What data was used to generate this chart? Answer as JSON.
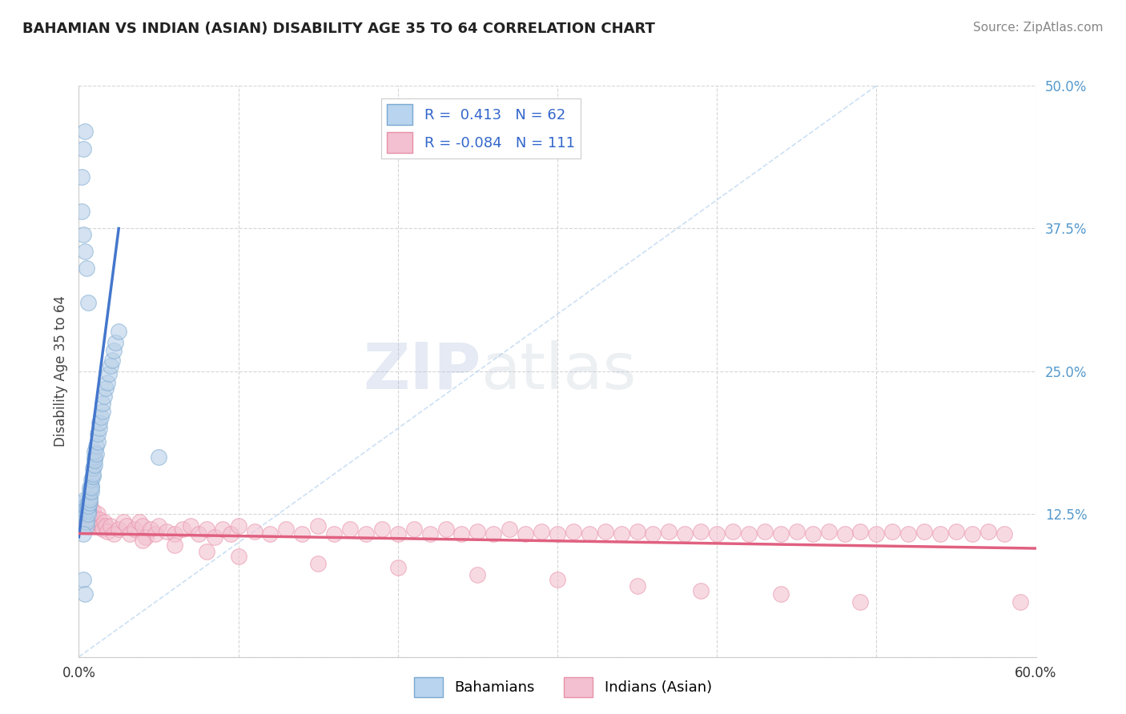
{
  "title": "BAHAMIAN VS INDIAN (ASIAN) DISABILITY AGE 35 TO 64 CORRELATION CHART",
  "source": "Source: ZipAtlas.com",
  "ylabel": "Disability Age 35 to 64",
  "xlim": [
    0.0,
    0.6
  ],
  "ylim": [
    0.0,
    0.5
  ],
  "xticks": [
    0.0,
    0.1,
    0.2,
    0.3,
    0.4,
    0.5,
    0.6
  ],
  "xticklabels": [
    "0.0%",
    "",
    "",
    "",
    "",
    "",
    "60.0%"
  ],
  "yticks": [
    0.0,
    0.125,
    0.25,
    0.375,
    0.5
  ],
  "yticklabels_right": [
    "",
    "12.5%",
    "25.0%",
    "37.5%",
    "50.0%"
  ],
  "blue_R": 0.413,
  "blue_N": 62,
  "pink_R": -0.084,
  "pink_N": 111,
  "blue_color": "#b8d0e8",
  "blue_edge": "#7aa8d0",
  "pink_color": "#f2c0d0",
  "pink_edge": "#e890a8",
  "blue_line_color": "#4477cc",
  "pink_line_color": "#e06080",
  "background_color": "#ffffff",
  "grid_color": "#cccccc",
  "watermark_color": "#c8ddf0",
  "blue_scatter_x": [
    0.002,
    0.003,
    0.003,
    0.004,
    0.004,
    0.004,
    0.005,
    0.005,
    0.005,
    0.005,
    0.005,
    0.006,
    0.006,
    0.006,
    0.006,
    0.006,
    0.007,
    0.007,
    0.007,
    0.007,
    0.007,
    0.008,
    0.008,
    0.008,
    0.008,
    0.009,
    0.009,
    0.009,
    0.01,
    0.01,
    0.01,
    0.01,
    0.011,
    0.011,
    0.012,
    0.012,
    0.013,
    0.013,
    0.014,
    0.015,
    0.015,
    0.016,
    0.017,
    0.018,
    0.019,
    0.02,
    0.021,
    0.022,
    0.023,
    0.025,
    0.002,
    0.003,
    0.004,
    0.005,
    0.006,
    0.002,
    0.003,
    0.004,
    0.05,
    0.003,
    0.003,
    0.004
  ],
  "blue_scatter_y": [
    0.13,
    0.125,
    0.135,
    0.128,
    0.132,
    0.138,
    0.125,
    0.13,
    0.12,
    0.115,
    0.118,
    0.13,
    0.128,
    0.135,
    0.125,
    0.132,
    0.14,
    0.148,
    0.135,
    0.145,
    0.138,
    0.15,
    0.145,
    0.155,
    0.148,
    0.158,
    0.165,
    0.16,
    0.168,
    0.175,
    0.172,
    0.18,
    0.185,
    0.178,
    0.188,
    0.195,
    0.2,
    0.205,
    0.21,
    0.215,
    0.222,
    0.228,
    0.235,
    0.24,
    0.248,
    0.255,
    0.26,
    0.268,
    0.275,
    0.285,
    0.39,
    0.37,
    0.355,
    0.34,
    0.31,
    0.42,
    0.445,
    0.46,
    0.175,
    0.108,
    0.068,
    0.055
  ],
  "pink_scatter_x": [
    0.002,
    0.003,
    0.003,
    0.004,
    0.004,
    0.005,
    0.005,
    0.005,
    0.006,
    0.006,
    0.006,
    0.007,
    0.007,
    0.008,
    0.008,
    0.009,
    0.009,
    0.01,
    0.01,
    0.011,
    0.012,
    0.013,
    0.014,
    0.015,
    0.016,
    0.017,
    0.018,
    0.02,
    0.022,
    0.025,
    0.028,
    0.03,
    0.032,
    0.035,
    0.038,
    0.04,
    0.042,
    0.045,
    0.048,
    0.05,
    0.055,
    0.06,
    0.065,
    0.07,
    0.075,
    0.08,
    0.085,
    0.09,
    0.095,
    0.1,
    0.11,
    0.12,
    0.13,
    0.14,
    0.15,
    0.16,
    0.17,
    0.18,
    0.19,
    0.2,
    0.21,
    0.22,
    0.23,
    0.24,
    0.25,
    0.26,
    0.27,
    0.28,
    0.29,
    0.3,
    0.31,
    0.32,
    0.33,
    0.34,
    0.35,
    0.36,
    0.37,
    0.38,
    0.39,
    0.4,
    0.41,
    0.42,
    0.43,
    0.44,
    0.45,
    0.46,
    0.47,
    0.48,
    0.49,
    0.5,
    0.51,
    0.52,
    0.53,
    0.54,
    0.55,
    0.56,
    0.57,
    0.58,
    0.06,
    0.08,
    0.1,
    0.15,
    0.2,
    0.25,
    0.3,
    0.35,
    0.39,
    0.44,
    0.49,
    0.04,
    0.59
  ],
  "pink_scatter_y": [
    0.125,
    0.128,
    0.118,
    0.122,
    0.13,
    0.118,
    0.125,
    0.132,
    0.12,
    0.115,
    0.128,
    0.122,
    0.135,
    0.118,
    0.125,
    0.12,
    0.128,
    0.115,
    0.122,
    0.118,
    0.125,
    0.12,
    0.115,
    0.112,
    0.118,
    0.115,
    0.11,
    0.115,
    0.108,
    0.112,
    0.118,
    0.115,
    0.108,
    0.112,
    0.118,
    0.115,
    0.105,
    0.112,
    0.108,
    0.115,
    0.11,
    0.108,
    0.112,
    0.115,
    0.108,
    0.112,
    0.105,
    0.112,
    0.108,
    0.115,
    0.11,
    0.108,
    0.112,
    0.108,
    0.115,
    0.108,
    0.112,
    0.108,
    0.112,
    0.108,
    0.112,
    0.108,
    0.112,
    0.108,
    0.11,
    0.108,
    0.112,
    0.108,
    0.11,
    0.108,
    0.11,
    0.108,
    0.11,
    0.108,
    0.11,
    0.108,
    0.11,
    0.108,
    0.11,
    0.108,
    0.11,
    0.108,
    0.11,
    0.108,
    0.11,
    0.108,
    0.11,
    0.108,
    0.11,
    0.108,
    0.11,
    0.108,
    0.11,
    0.108,
    0.11,
    0.108,
    0.11,
    0.108,
    0.098,
    0.092,
    0.088,
    0.082,
    0.078,
    0.072,
    0.068,
    0.062,
    0.058,
    0.055,
    0.048,
    0.102,
    0.048
  ],
  "pink_line_start_x": 0.0,
  "pink_line_start_y": 0.108,
  "pink_line_end_x": 0.6,
  "pink_line_end_y": 0.095,
  "blue_line_start_x": 0.0,
  "blue_line_start_y": 0.105,
  "blue_line_end_x": 0.025,
  "blue_line_end_y": 0.375
}
